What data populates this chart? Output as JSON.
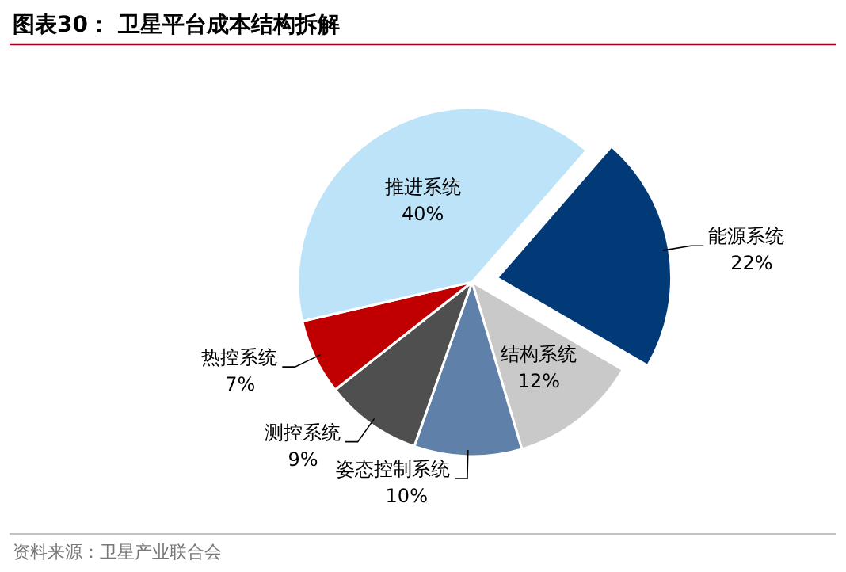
{
  "chart_data": {
    "type": "pie",
    "title": "图表30：  卫星平台成本结构拆解",
    "categories": [
      "能源系统",
      "结构系统",
      "姿态控制系统",
      "测控系统",
      "热控系统",
      "推进系统"
    ],
    "values": [
      22,
      12,
      10,
      9,
      7,
      40
    ],
    "value_labels": [
      "22%",
      "12%",
      "10%",
      "9%",
      "7%",
      "40%"
    ],
    "colors": [
      "#023a78",
      "#c9c9c9",
      "#5f80a9",
      "#4f4f4f",
      "#c00000",
      "#bde3f8"
    ],
    "annotations": [
      "资料来源：卫星产业联合会"
    ]
  }
}
